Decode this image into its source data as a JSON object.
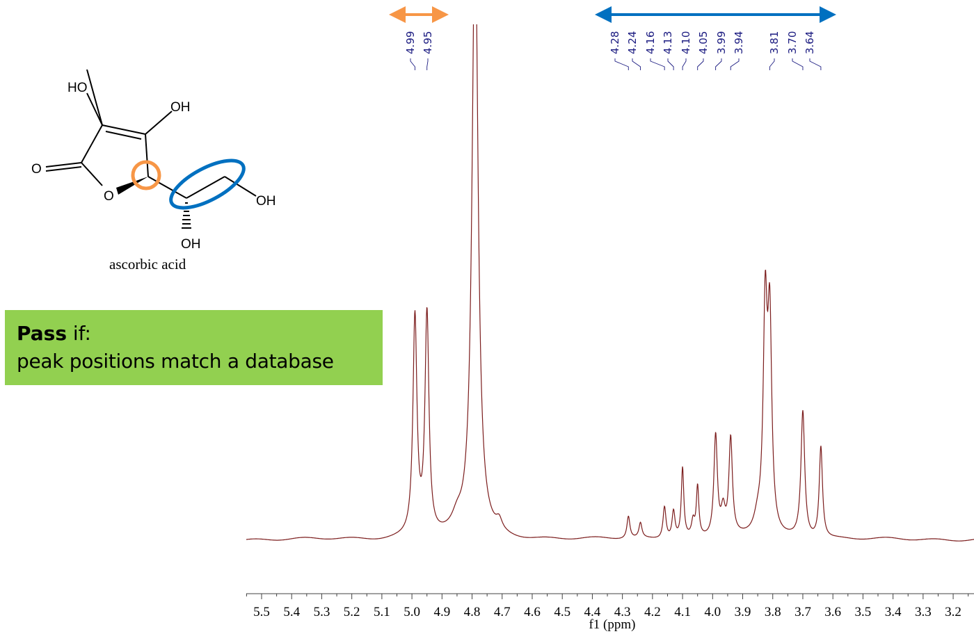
{
  "molecule": {
    "name": "ascorbic acid",
    "atom_labels": {
      "ho_top": "HO",
      "oh_top": "OH",
      "carbonyl_o": "O",
      "ring_o": "O",
      "oh_right": "OH",
      "oh_bottom": "OH"
    },
    "highlight_colors": {
      "orange": "#f79646",
      "blue": "#0070c0"
    }
  },
  "criteria_box": {
    "bold_word": "Pass",
    "line1_rest": " if:",
    "line2": "peak positions match a database",
    "background": "#92d050"
  },
  "annotations": {
    "orange_arrow": {
      "color": "#f79646",
      "from_ppm": 5.01,
      "to_ppm": 4.93,
      "group": [
        "4.99",
        "4.95"
      ]
    },
    "blue_arrow": {
      "color": "#0070c0",
      "from_ppm": 4.3,
      "to_ppm": 3.62,
      "group": [
        "4.28",
        "4.24",
        "4.16",
        "4.13",
        "4.10",
        "4.05",
        "3.99",
        "3.94",
        "3.81",
        "3.70",
        "3.64"
      ]
    }
  },
  "chart_data": {
    "type": "line",
    "title": "",
    "xlabel": "f1 (ppm)",
    "ylabel": "",
    "x_reversed": true,
    "xlim": [
      5.55,
      3.15
    ],
    "x_ticks": [
      "5.5",
      "5.4",
      "5.3",
      "5.2",
      "5.1",
      "5.0",
      "4.9",
      "4.8",
      "4.7",
      "4.6",
      "4.5",
      "4.4",
      "4.3",
      "4.2",
      "4.1",
      "4.0",
      "3.9",
      "3.8",
      "3.7",
      "3.6",
      "3.5",
      "3.4",
      "3.3",
      "3.2"
    ],
    "grid": false,
    "line_color": "#7b1c1c",
    "peak_labels": [
      "4.99",
      "4.95",
      "4.28",
      "4.24",
      "4.16",
      "4.13",
      "4.10",
      "4.05",
      "3.99",
      "3.94",
      "3.81",
      "3.70",
      "3.64"
    ],
    "peaks": [
      {
        "ppm": 4.99,
        "height": 0.44,
        "width": 0.008
      },
      {
        "ppm": 4.95,
        "height": 0.445,
        "width": 0.008
      },
      {
        "ppm": 4.79,
        "height": 1.25,
        "width": 0.012,
        "note": "solvent (HDO), off-scale"
      },
      {
        "ppm": 4.85,
        "height": 0.025,
        "width": 0.02
      },
      {
        "ppm": 4.71,
        "height": 0.02,
        "width": 0.012
      },
      {
        "ppm": 4.28,
        "height": 0.045,
        "width": 0.006
      },
      {
        "ppm": 4.24,
        "height": 0.03,
        "width": 0.006
      },
      {
        "ppm": 4.16,
        "height": 0.065,
        "width": 0.006
      },
      {
        "ppm": 4.13,
        "height": 0.055,
        "width": 0.006
      },
      {
        "ppm": 4.1,
        "height": 0.14,
        "width": 0.005
      },
      {
        "ppm": 4.065,
        "height": 0.03,
        "width": 0.006
      },
      {
        "ppm": 4.05,
        "height": 0.1,
        "width": 0.005
      },
      {
        "ppm": 3.99,
        "height": 0.205,
        "width": 0.007
      },
      {
        "ppm": 3.965,
        "height": 0.05,
        "width": 0.008
      },
      {
        "ppm": 3.94,
        "height": 0.195,
        "width": 0.007
      },
      {
        "ppm": 3.825,
        "height": 0.44,
        "width": 0.008
      },
      {
        "ppm": 3.81,
        "height": 0.41,
        "width": 0.008
      },
      {
        "ppm": 3.85,
        "height": 0.03,
        "width": 0.015
      },
      {
        "ppm": 3.7,
        "height": 0.255,
        "width": 0.0075
      },
      {
        "ppm": 3.64,
        "height": 0.185,
        "width": 0.0065
      }
    ]
  }
}
